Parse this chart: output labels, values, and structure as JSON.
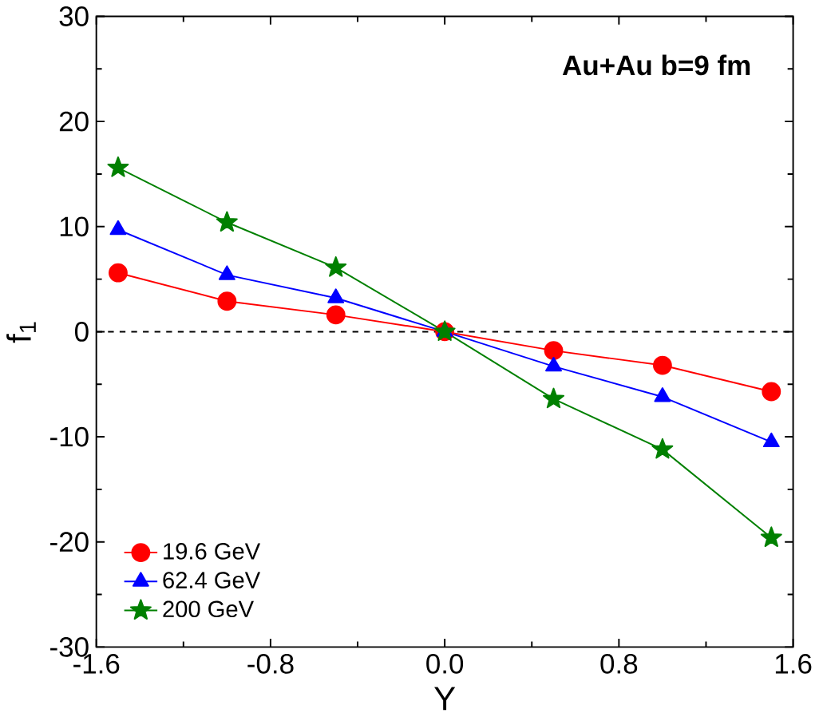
{
  "chart_data": {
    "type": "line",
    "xlabel": "Y",
    "ylabel": "f$_{1}$",
    "annotations": [
      "Au+Au  b=9 fm"
    ],
    "x": [
      -1.5,
      -1.0,
      -0.5,
      0.0,
      0.5,
      1.0,
      1.5
    ],
    "series": [
      {
        "name": "19.6 GeV",
        "color": "#ff0000",
        "marker": "circle",
        "values": [
          5.6,
          2.9,
          1.6,
          0,
          -1.8,
          -3.2,
          -5.7
        ]
      },
      {
        "name": "62.4 GeV",
        "color": "#0000ff",
        "marker": "triangle",
        "values": [
          9.7,
          5.4,
          3.2,
          0,
          -3.3,
          -6.2,
          -10.5
        ]
      },
      {
        "name": "200 GeV",
        "color": "#008000",
        "marker": "star",
        "values": [
          15.6,
          10.4,
          6.1,
          0,
          -6.4,
          -11.2,
          -19.6
        ]
      }
    ],
    "xlim": [
      -1.6,
      1.6
    ],
    "ylim": [
      -30,
      30
    ],
    "xticks": [
      -1.6,
      -0.8,
      {
        "value": 0,
        "label": "0.0"
      },
      0.8,
      1.6
    ],
    "yticks": [
      -30,
      -20,
      -10,
      0,
      10,
      20,
      30
    ],
    "ref_lines": [
      {
        "axis": "y",
        "value": 0,
        "line_style": "dashed",
        "color": "#000000"
      }
    ],
    "legend": "bottom left",
    "grid": false,
    "line_style": "solid"
  }
}
